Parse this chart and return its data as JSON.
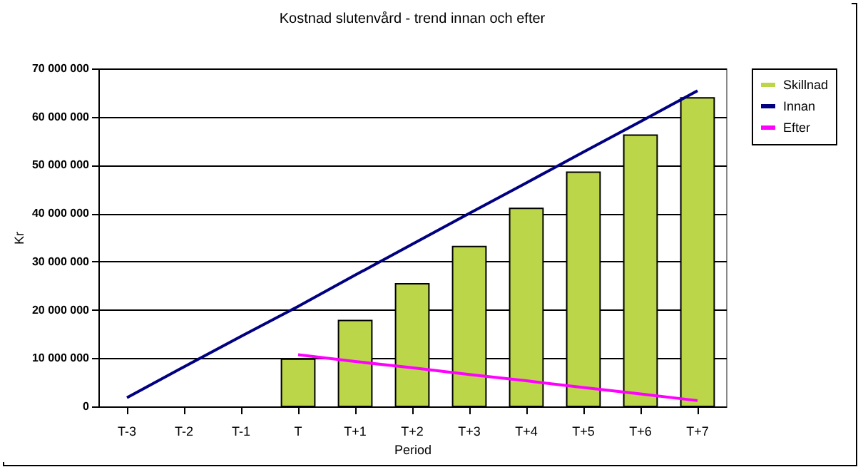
{
  "chart_data": {
    "type": "bar",
    "title": "Kostnad slutenvård - trend innan och efter",
    "xlabel": "Period",
    "ylabel": "Kr",
    "categories": [
      "T-3",
      "T-2",
      "T-1",
      "T",
      "T+1",
      "T+2",
      "T+3",
      "T+4",
      "T+5",
      "T+6",
      "T+7"
    ],
    "series": [
      {
        "name": "Skillnad",
        "color": "#bcd64a",
        "values": [
          null,
          null,
          null,
          9800000,
          17800000,
          25400000,
          33100000,
          41000000,
          48500000,
          56200000,
          63900000
        ]
      },
      {
        "name": "Innan",
        "type": "line",
        "color": "#000080",
        "values": [
          1800000,
          8200000,
          14500000,
          20700000,
          27200000,
          33600000,
          40000000,
          46300000,
          52700000,
          59000000,
          65400000
        ]
      },
      {
        "name": "Efter",
        "type": "line",
        "color": "#ff00ff",
        "values": [
          null,
          null,
          null,
          10700000,
          9300000,
          8000000,
          6600000,
          5300000,
          3900000,
          2600000,
          1200000
        ]
      }
    ],
    "ylim": [
      0,
      70000000
    ],
    "yticks": [
      0,
      {
        "value": 10000000,
        "label": "10 000 000"
      },
      {
        "value": 20000000,
        "label": "20 000 000"
      },
      {
        "value": 30000000,
        "label": "30 000 000"
      },
      {
        "value": 40000000,
        "label": "40 000 000"
      },
      {
        "value": 50000000,
        "label": "50 000 000"
      },
      {
        "value": 60000000,
        "label": "60 000 000"
      },
      {
        "value": 70000000,
        "label": "70 000 000"
      }
    ],
    "grid": "y",
    "legend": "right",
    "marker": "none",
    "line_style": "solid"
  }
}
